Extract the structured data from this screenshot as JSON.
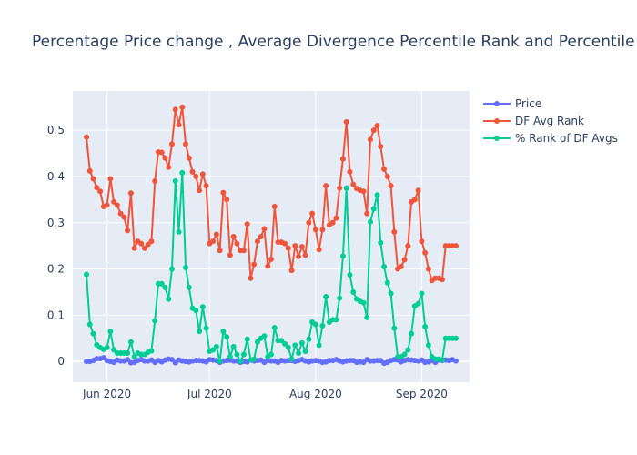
{
  "chart_data": {
    "type": "line",
    "title": "Percentage Price change , Average Divergence Percentile Rank and Percentile",
    "xlabel": "",
    "ylabel": "",
    "x_tick_labels": [
      "Jun 2020",
      "Jul 2020",
      "Aug 2020",
      "Sep 2020"
    ],
    "x_tick_dates": [
      "2020-06-01",
      "2020-07-01",
      "2020-08-01",
      "2020-09-01"
    ],
    "y_ticks": [
      0,
      0.1,
      0.2,
      0.3,
      0.4,
      0.5
    ],
    "y_tick_labels": [
      "0",
      "0.1",
      "0.2",
      "0.3",
      "0.4",
      "0.5"
    ],
    "xlim": [
      "2020-05-22",
      "2020-09-15"
    ],
    "ylim": [
      -0.045,
      0.585
    ],
    "grid": true,
    "legend_position": "top-right",
    "x": [
      "2020-05-26",
      "2020-05-27",
      "2020-05-28",
      "2020-05-29",
      "2020-05-30",
      "2020-05-31",
      "2020-06-01",
      "2020-06-02",
      "2020-06-03",
      "2020-06-04",
      "2020-06-05",
      "2020-06-06",
      "2020-06-07",
      "2020-06-08",
      "2020-06-09",
      "2020-06-10",
      "2020-06-11",
      "2020-06-12",
      "2020-06-13",
      "2020-06-14",
      "2020-06-15",
      "2020-06-16",
      "2020-06-17",
      "2020-06-18",
      "2020-06-19",
      "2020-06-20",
      "2020-06-21",
      "2020-06-22",
      "2020-06-23",
      "2020-06-24",
      "2020-06-25",
      "2020-06-26",
      "2020-06-27",
      "2020-06-28",
      "2020-06-29",
      "2020-06-30",
      "2020-07-01",
      "2020-07-02",
      "2020-07-03",
      "2020-07-04",
      "2020-07-05",
      "2020-07-06",
      "2020-07-07",
      "2020-07-08",
      "2020-07-09",
      "2020-07-10",
      "2020-07-11",
      "2020-07-12",
      "2020-07-13",
      "2020-07-14",
      "2020-07-15",
      "2020-07-16",
      "2020-07-17",
      "2020-07-18",
      "2020-07-19",
      "2020-07-20",
      "2020-07-21",
      "2020-07-22",
      "2020-07-23",
      "2020-07-24",
      "2020-07-25",
      "2020-07-26",
      "2020-07-27",
      "2020-07-28",
      "2020-07-29",
      "2020-07-30",
      "2020-07-31",
      "2020-08-01",
      "2020-08-02",
      "2020-08-03",
      "2020-08-04",
      "2020-08-05",
      "2020-08-06",
      "2020-08-07",
      "2020-08-08",
      "2020-08-09",
      "2020-08-10",
      "2020-08-11",
      "2020-08-12",
      "2020-08-13",
      "2020-08-14",
      "2020-08-15",
      "2020-08-16",
      "2020-08-17",
      "2020-08-18",
      "2020-08-19",
      "2020-08-20",
      "2020-08-21",
      "2020-08-22",
      "2020-08-23",
      "2020-08-24",
      "2020-08-25",
      "2020-08-26",
      "2020-08-27",
      "2020-08-28",
      "2020-08-29",
      "2020-08-30",
      "2020-08-31",
      "2020-09-01",
      "2020-09-02",
      "2020-09-03",
      "2020-09-04",
      "2020-09-05",
      "2020-09-06",
      "2020-09-07",
      "2020-09-08",
      "2020-09-09",
      "2020-09-10",
      "2020-09-11"
    ],
    "series": [
      {
        "name": "Price",
        "color": "#636efa",
        "values": [
          0.0,
          0.0,
          0.002,
          0.006,
          0.006,
          0.008,
          0.002,
          0.0,
          -0.002,
          0.003,
          0.001,
          0.001,
          0.004,
          -0.003,
          -0.002,
          0.002,
          0.004,
          0.001,
          0.001,
          0.003,
          -0.002,
          0.002,
          -0.001,
          0.003,
          0.005,
          0.004,
          -0.003,
          0.003,
          0.001,
          0.0,
          -0.001,
          0.001,
          0.002,
          0.002,
          0.001,
          -0.001,
          0.004,
          0.003,
          0.002,
          -0.002,
          0.001,
          0.002,
          0.003,
          0.001,
          0.001,
          -0.002,
          0.0,
          -0.001,
          0.003,
          0.001,
          0.002,
          0.003,
          -0.002,
          0.002,
          0.001,
          0.001,
          -0.002,
          0.002,
          0.001,
          0.002,
          0.002,
          0.0,
          0.002,
          0.004,
          0.001,
          -0.001,
          0.001,
          0.002,
          0.001,
          -0.002,
          -0.001,
          0.002,
          0.002,
          0.004,
          0.001,
          -0.001,
          0.001,
          0.002,
          0.002,
          -0.002,
          -0.001,
          -0.002,
          0.004,
          0.001,
          0.001,
          0.002,
          0.002,
          -0.004,
          -0.002,
          0.002,
          0.004,
          0.003,
          -0.001,
          0.002,
          0.004,
          0.003,
          0.002,
          0.001,
          0.003,
          -0.002,
          -0.001,
          0.002,
          -0.002,
          0.003,
          0.002,
          0.003,
          0.002,
          0.004,
          0.001
        ]
      },
      {
        "name": "DF Avg Rank",
        "color": "#ef553b",
        "values": [
          0.485,
          0.412,
          0.395,
          0.376,
          0.368,
          0.335,
          0.338,
          0.395,
          0.345,
          0.338,
          0.32,
          0.312,
          0.283,
          0.364,
          0.245,
          0.26,
          0.255,
          0.245,
          0.253,
          0.26,
          0.39,
          0.453,
          0.452,
          0.44,
          0.42,
          0.47,
          0.545,
          0.512,
          0.55,
          0.47,
          0.44,
          0.41,
          0.4,
          0.37,
          0.405,
          0.38,
          0.255,
          0.26,
          0.275,
          0.24,
          0.365,
          0.35,
          0.23,
          0.27,
          0.255,
          0.24,
          0.24,
          0.297,
          0.18,
          0.21,
          0.26,
          0.27,
          0.287,
          0.206,
          0.221,
          0.335,
          0.258,
          0.258,
          0.255,
          0.245,
          0.197,
          0.25,
          0.227,
          0.248,
          0.23,
          0.3,
          0.32,
          0.285,
          0.242,
          0.285,
          0.38,
          0.295,
          0.3,
          0.31,
          0.375,
          0.438,
          0.518,
          0.41,
          0.383,
          0.374,
          0.37,
          0.368,
          0.32,
          0.48,
          0.5,
          0.51,
          0.465,
          0.416,
          0.4,
          0.38,
          0.28,
          0.2,
          0.205,
          0.22,
          0.25,
          0.345,
          0.35,
          0.37,
          0.26,
          0.235,
          0.2,
          0.175,
          0.18,
          0.18,
          0.177,
          0.25,
          0.25,
          0.25,
          0.25
        ]
      },
      {
        "name": "% Rank of DF Avgs",
        "color": "#00cc96",
        "values": [
          0.188,
          0.08,
          0.06,
          0.036,
          0.03,
          0.026,
          0.03,
          0.065,
          0.025,
          0.018,
          0.018,
          0.018,
          0.018,
          0.042,
          0.01,
          0.018,
          0.015,
          0.015,
          0.02,
          0.023,
          0.088,
          0.168,
          0.168,
          0.16,
          0.135,
          0.2,
          0.39,
          0.28,
          0.408,
          0.203,
          0.16,
          0.115,
          0.11,
          0.065,
          0.118,
          0.072,
          0.022,
          0.025,
          0.032,
          0.0,
          0.065,
          0.053,
          0.01,
          0.032,
          0.015,
          0.0,
          0.015,
          0.048,
          0.003,
          0.005,
          0.042,
          0.05,
          0.055,
          0.01,
          0.015,
          0.073,
          0.045,
          0.045,
          0.038,
          0.03,
          0.005,
          0.035,
          0.018,
          0.04,
          0.022,
          0.048,
          0.085,
          0.08,
          0.035,
          0.077,
          0.14,
          0.085,
          0.09,
          0.09,
          0.137,
          0.228,
          0.375,
          0.187,
          0.15,
          0.135,
          0.13,
          0.127,
          0.095,
          0.302,
          0.33,
          0.36,
          0.257,
          0.205,
          0.17,
          0.147,
          0.072,
          0.01,
          0.01,
          0.015,
          0.025,
          0.06,
          0.12,
          0.125,
          0.147,
          0.075,
          0.035,
          0.01,
          0.005,
          0.005,
          0.003,
          0.05,
          0.05,
          0.05,
          0.05
        ]
      }
    ]
  }
}
